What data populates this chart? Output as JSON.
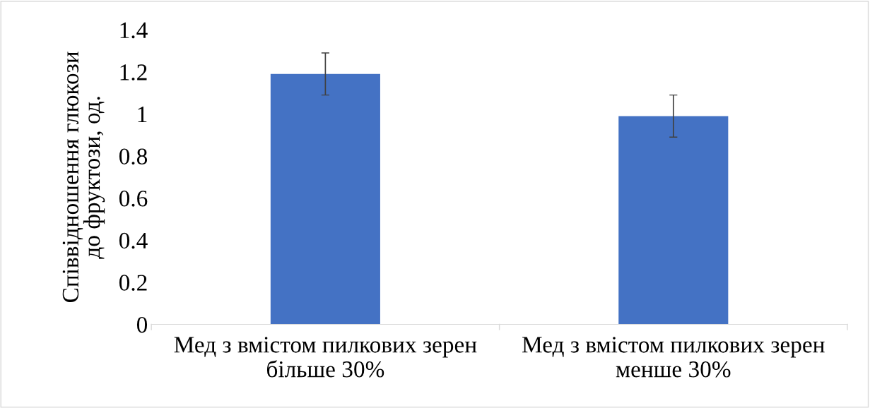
{
  "chart_data": {
    "type": "bar",
    "ylabel": "Співвідношення глюкози\nдо фруктози, од.",
    "categories": [
      "Мед з вмістом пилкових зерен\nбільше 30%",
      "Мед з вмістом пилкових зерен\nменше 30%"
    ],
    "values": [
      1.19,
      0.99
    ],
    "errors": [
      0.1,
      0.1
    ],
    "color": "#4472c4",
    "ylim": [
      0,
      1.4
    ],
    "yticks": [
      0,
      0.2,
      0.4,
      0.6,
      0.8,
      1,
      1.2,
      1.4
    ],
    "grid": false,
    "legend": false
  }
}
